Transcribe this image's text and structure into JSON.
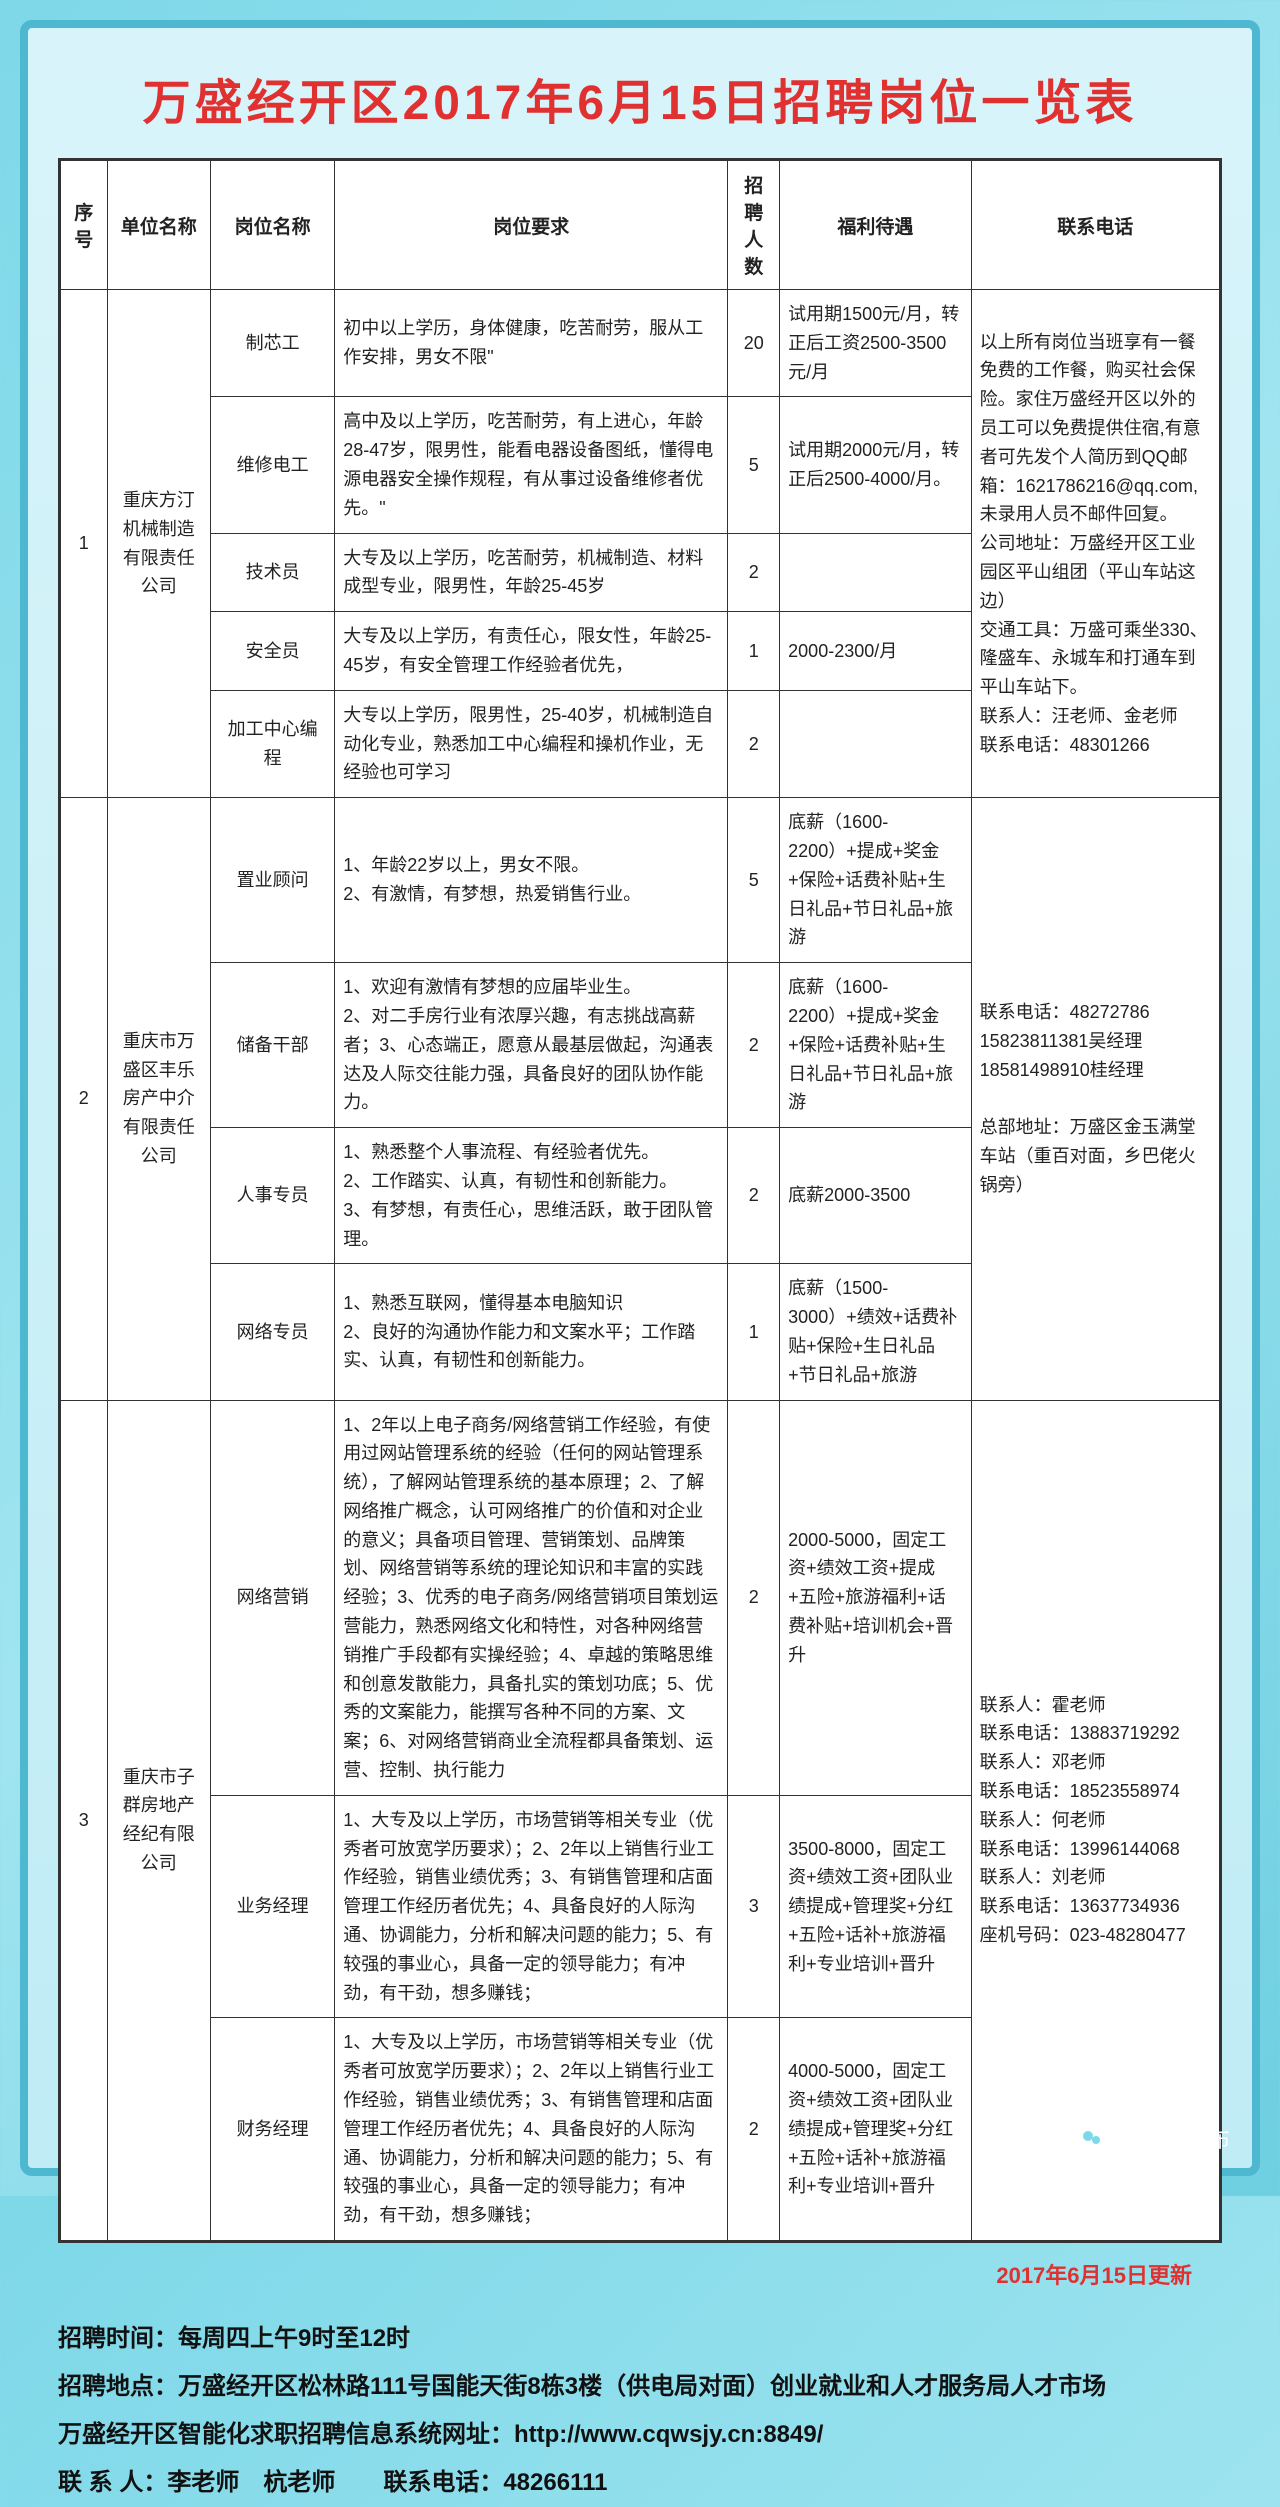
{
  "title": "万盛经开区2017年6月15日招聘岗位一览表",
  "headers": {
    "seq": "序号",
    "company": "单位名称",
    "position": "岗位名称",
    "requirement": "岗位要求",
    "count": "招聘人数",
    "benefit": "福利待遇",
    "contact": "联系电话"
  },
  "groups": [
    {
      "seq": "1",
      "company": "重庆方汀机械制造有限责任公司",
      "contact": "以上所有岗位当班享有一餐免费的工作餐，购买社会保险。家住万盛经开区以外的员工可以免费提供住宿,有意者可先发个人简历到QQ邮箱：1621786216@qq.com,未录用人员不邮件回复。\n公司地址：万盛经开区工业园区平山组团（平山车站这边）\n交通工具：万盛可乘坐330、隆盛车、永城车和打通车到平山车站下。\n联系人：汪老师、金老师　　联系电话：48301266",
      "rows": [
        {
          "position": "制芯工",
          "requirement": "初中以上学历，身体健康，吃苦耐劳，服从工作安排，男女不限\"",
          "count": "20",
          "benefit": "试用期1500元/月，转正后工资2500-3500元/月"
        },
        {
          "position": "维修电工",
          "requirement": "高中及以上学历，吃苦耐劳，有上进心，年龄28-47岁，限男性，能看电器设备图纸，懂得电源电器安全操作规程，有从事过设备维修者优先。\"",
          "count": "5",
          "benefit": "试用期2000元/月，转正后2500-4000/月。"
        },
        {
          "position": "技术员",
          "requirement": "大专及以上学历，吃苦耐劳，机械制造、材料成型专业，限男性，年龄25-45岁",
          "count": "2",
          "benefit": ""
        },
        {
          "position": "安全员",
          "requirement": "大专及以上学历，有责任心，限女性，年龄25-45岁，有安全管理工作经验者优先，",
          "count": "1",
          "benefit": "2000-2300/月"
        },
        {
          "position": "加工中心编程",
          "requirement": "大专以上学历，限男性，25-40岁，机械制造自动化专业，熟悉加工中心编程和操机作业，无经验也可学习",
          "count": "2",
          "benefit": ""
        }
      ]
    },
    {
      "seq": "2",
      "company": "重庆市万盛区丰乐房产中介有限责任公司",
      "contact": "联系电话：48272786\n15823811381吴经理\n18581498910桂经理\n\n总部地址：万盛区金玉满堂车站（重百对面，乡巴佬火锅旁）",
      "rows": [
        {
          "position": "置业顾问",
          "requirement": "1、年龄22岁以上，男女不限。\n2、有激情，有梦想，热爱销售行业。",
          "count": "5",
          "benefit": "底薪（1600-2200）+提成+奖金+保险+话费补贴+生日礼品+节日礼品+旅游"
        },
        {
          "position": "储备干部",
          "requirement": "1、欢迎有激情有梦想的应届毕业生。\n2、对二手房行业有浓厚兴趣，有志挑战高薪者；3、心态端正，愿意从最基层做起，沟通表达及人际交往能力强，具备良好的团队协作能力。",
          "count": "2",
          "benefit": "底薪（1600-2200）+提成+奖金+保险+话费补贴+生日礼品+节日礼品+旅游"
        },
        {
          "position": "人事专员",
          "requirement": "1、熟悉整个人事流程、有经验者优先。\n2、工作踏实、认真，有韧性和创新能力。\n3、有梦想，有责任心，思维活跃，敢于团队管理。",
          "count": "2",
          "benefit": "底薪2000-3500"
        },
        {
          "position": "网络专员",
          "requirement": "1、熟悉互联网，懂得基本电脑知识\n2、良好的沟通协作能力和文案水平；工作踏实、认真，有韧性和创新能力。",
          "count": "1",
          "benefit": "底薪（1500-3000）+绩效+话费补贴+保险+生日礼品+节日礼品+旅游"
        }
      ]
    },
    {
      "seq": "3",
      "company": "重庆市子群房地产经纪有限公司",
      "contact": "联系人：霍老师\n联系电话：13883719292\n联系人：邓老师\n联系电话：18523558974\n联系人：何老师\n联系电话：13996144068\n联系人：刘老师\n联系电话：13637734936\n座机号码：023-48280477",
      "rows": [
        {
          "position": "网络营销",
          "requirement": "1、2年以上电子商务/网络营销工作经验，有使用过网站管理系统的经验（任何的网站管理系统），了解网站管理系统的基本原理；2、了解网络推广概念，认可网络推广的价值和对企业的意义；具备项目管理、营销策划、品牌策划、网络营销等系统的理论知识和丰富的实践经验；3、优秀的电子商务/网络营销项目策划运营能力，熟悉网络文化和特性，对各种网络营销推广手段都有实操经验；4、卓越的策略思维和创意发散能力，具备扎实的策划功底；5、优秀的文案能力，能撰写各种不同的方案、文案；6、对网络营销商业全流程都具备策划、运营、控制、执行能力",
          "count": "2",
          "benefit": "2000-5000，固定工资+绩效工资+提成+五险+旅游福利+话费补贴+培训机会+晋升"
        },
        {
          "position": "业务经理",
          "requirement": "1、大专及以上学历，市场营销等相关专业（优秀者可放宽学历要求）；2、2年以上销售行业工作经验，销售业绩优秀；3、有销售管理和店面管理工作经历者优先；4、具备良好的人际沟通、协调能力，分析和解决问题的能力；5、有较强的事业心，具备一定的领导能力；有冲劲，有干劲，想多赚钱；",
          "count": "3",
          "benefit": "3500-8000，固定工资+绩效工资+团队业绩提成+管理奖+分红+五险+话补+旅游福利+专业培训+晋升"
        },
        {
          "position": "财务经理",
          "requirement": "1、大专及以上学历，市场营销等相关专业（优秀者可放宽学历要求）；2、2年以上销售行业工作经验，销售业绩优秀；3、有销售管理和店面管理工作经历者优先；4、具备良好的人际沟通、协调能力，分析和解决问题的能力；5、有较强的事业心，具备一定的领导能力；有冲劲，有干劲，想多赚钱；",
          "count": "2",
          "benefit": "4000-5000，固定工资+绩效工资+团队业绩提成+管理奖+分红+五险+话补+旅游福利+专业培训+晋升"
        }
      ]
    }
  ],
  "update_note": "2017年6月15日更新",
  "footer": {
    "line1": "招聘时间：每周四上午9时至12时",
    "line2": "招聘地点：万盛经开区松林路111号国能天街8栋3楼（供电局对面）创业就业和人才服务局人才市场",
    "line3": "万盛经开区智能化求职招聘信息系统网址：http://www.cqwsjy.cn:8849/",
    "line4": "联 系 人：李老师　杭老师　　联系电话：48266111"
  },
  "wechat_name": "万盛微发布"
}
